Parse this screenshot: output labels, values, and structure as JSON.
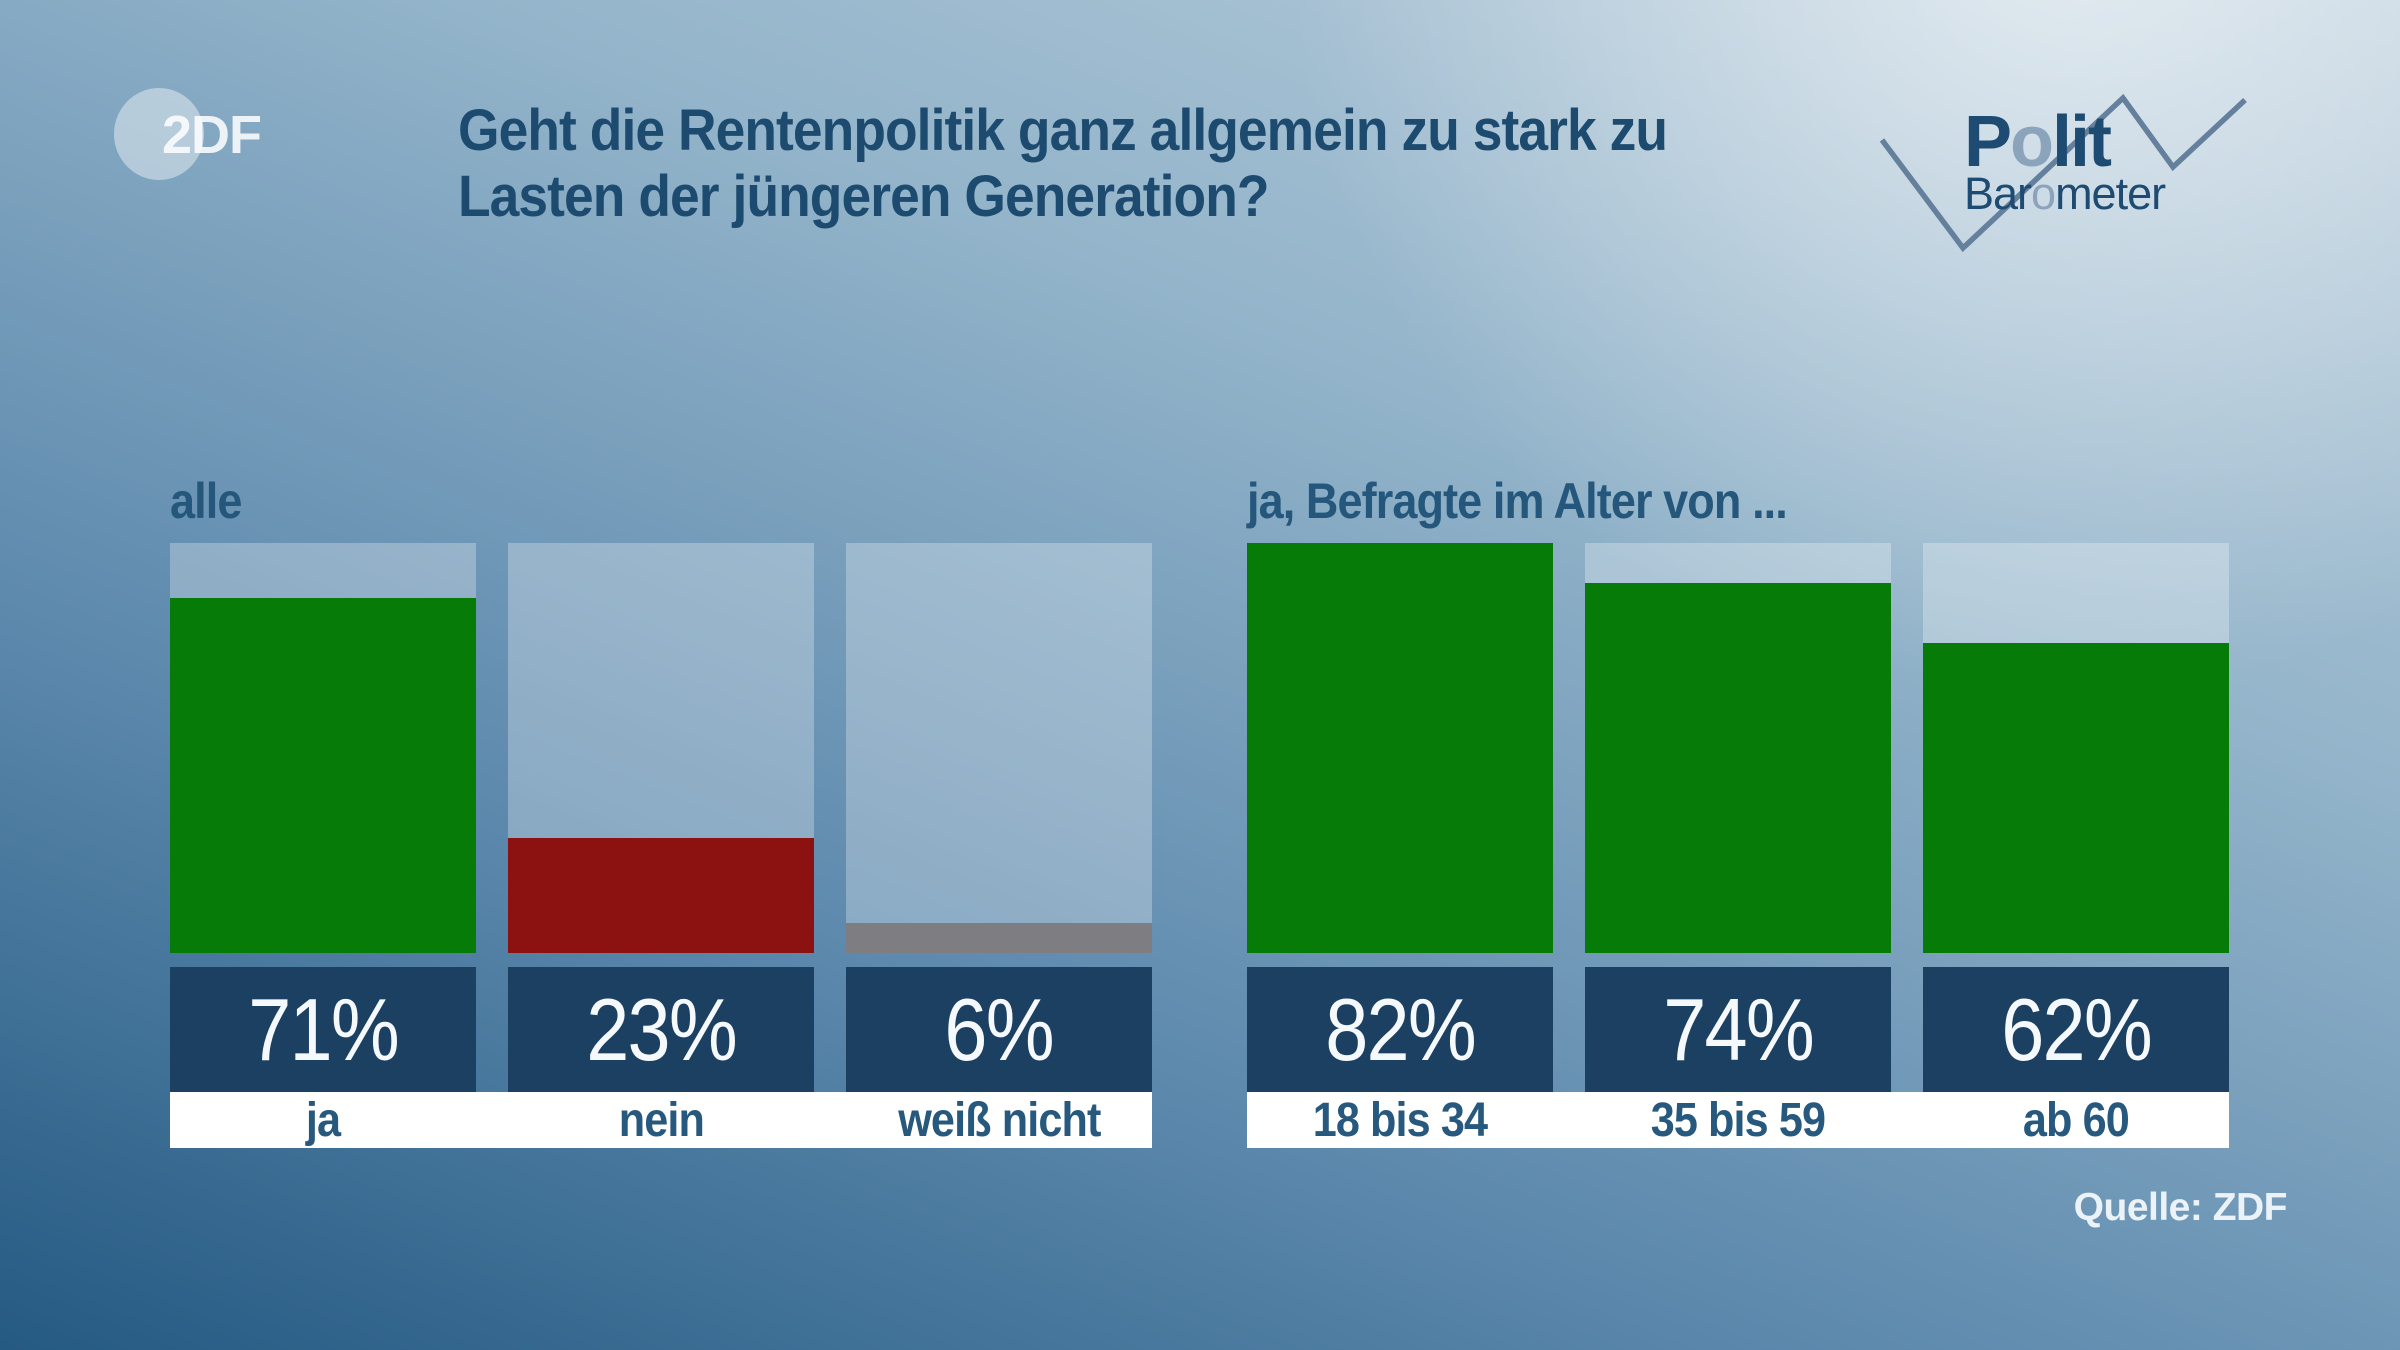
{
  "header": {
    "zdf_logo_text": "2DF",
    "title_line1": "Geht die Rentenpolitik ganz allgemein zu stark zu",
    "title_line2": "Lasten der jüngeren Generation?",
    "brand": {
      "polit_p": "P",
      "polit_o": "o",
      "polit_rest": "lit",
      "baro_pre": "Bar",
      "baro_o": "o",
      "baro_rest": "meter"
    }
  },
  "footer": {
    "source": "Quelle: ZDF"
  },
  "colors": {
    "bar_green": "#077b07",
    "bar_red": "#8c1212",
    "bar_gray": "#7e7e82",
    "value_box_navy": "#1c4062",
    "label_band_white": "#ffffff",
    "title_blue": "#1d4b6f",
    "brand_dark_blue": "#1e4b72",
    "brand_light_blue": "#8ba3bb",
    "zigzag_blue": "#64809c"
  },
  "chart_data": {
    "type": "bar",
    "title": "Geht die Rentenpolitik ganz allgemein zu stark zu Lasten der jüngeren Generation?",
    "unit": "%",
    "ylim": [
      0,
      82
    ],
    "grid": false,
    "legend": false,
    "groups": [
      {
        "label": "alle",
        "bars": [
          {
            "category": "ja",
            "value": 71,
            "value_label": "71%",
            "color": "#077b07"
          },
          {
            "category": "nein",
            "value": 23,
            "value_label": "23%",
            "color": "#8c1212"
          },
          {
            "category": "weiß nicht",
            "value": 6,
            "value_label": "6%",
            "color": "#7e7e82"
          }
        ]
      },
      {
        "label": "ja, Befragte im Alter von ...",
        "bars": [
          {
            "category": "18 bis 34",
            "value": 82,
            "value_label": "82%",
            "color": "#077b07"
          },
          {
            "category": "35 bis 59",
            "value": 74,
            "value_label": "74%",
            "color": "#077b07"
          },
          {
            "category": "ab 60",
            "value": 62,
            "value_label": "62%",
            "color": "#077b07"
          }
        ]
      }
    ]
  }
}
